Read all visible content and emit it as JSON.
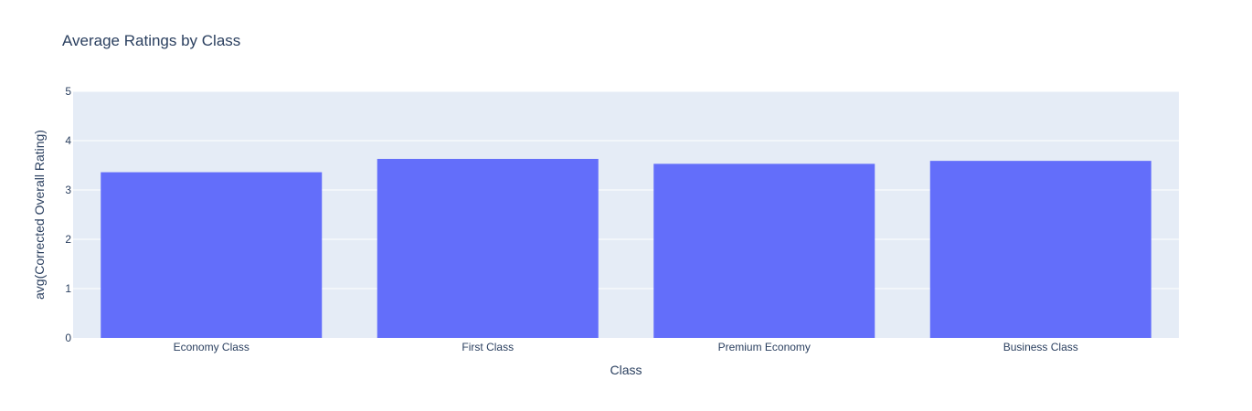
{
  "chart_data": {
    "type": "bar",
    "title": "Average Ratings by Class",
    "xlabel": "Class",
    "ylabel": "avg(Corrected Overall Rating)",
    "categories": [
      "Economy Class",
      "First Class",
      "Premium Economy",
      "Business Class"
    ],
    "values": [
      3.36,
      3.63,
      3.53,
      3.59
    ],
    "ylim": [
      0,
      5
    ],
    "yticks": [
      "0",
      "1",
      "2",
      "3",
      "4",
      "5"
    ],
    "grid": true,
    "legend": "none",
    "colors": {
      "bar": "#636efa",
      "plot_bg": "#e5ecf6",
      "grid": "#ffffff",
      "text": "#2a3f5f"
    }
  }
}
